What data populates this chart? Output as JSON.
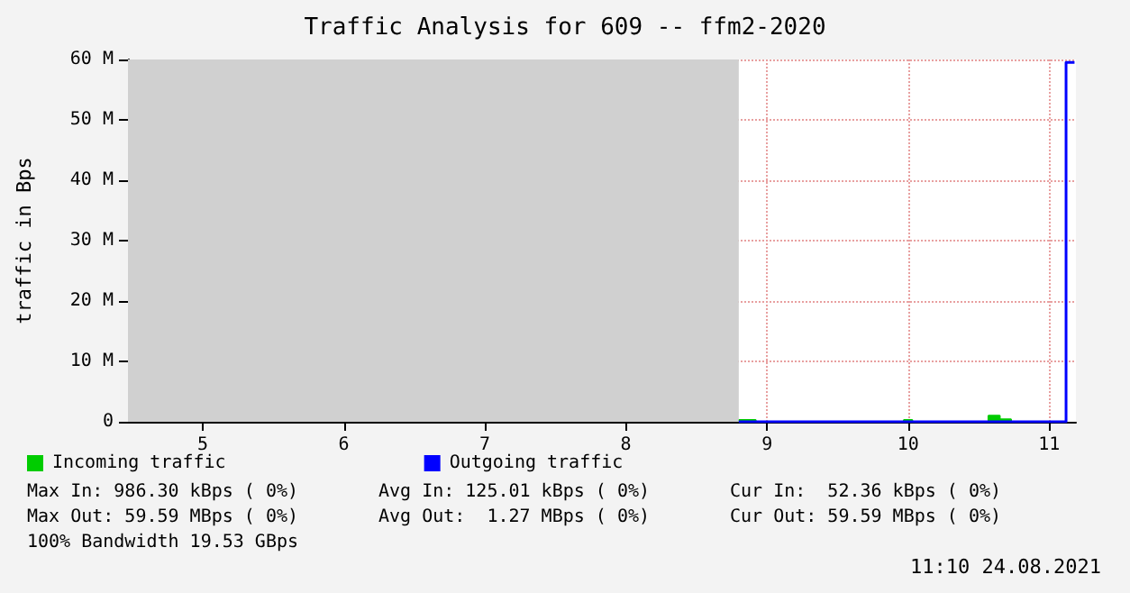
{
  "chart_data": {
    "type": "area",
    "title": "Traffic Analysis for 609 -- ffm2-2020",
    "ylabel": "traffic in Bps",
    "xlim": [
      4.47,
      11.19
    ],
    "xticks": [
      5,
      6,
      7,
      8,
      9,
      10,
      11
    ],
    "ylim": [
      0,
      60
    ],
    "yticks": [
      0,
      {
        "value": 10,
        "label": "10 M"
      },
      {
        "value": 20,
        "label": "20 M"
      },
      {
        "value": 30,
        "label": "30 M"
      },
      {
        "value": 40,
        "label": "40 M"
      },
      {
        "value": 50,
        "label": "50 M"
      },
      {
        "value": 60,
        "label": "60 M"
      }
    ],
    "series": [
      {
        "name": "Incoming traffic",
        "color": "#00cc00",
        "x": [
          8.8,
          8.92,
          9.97,
          10.03,
          10.57,
          10.65,
          10.73
        ],
        "values": [
          0.3,
          0,
          0.3,
          0,
          1,
          0.4,
          0
        ]
      },
      {
        "name": "Outgoing traffic",
        "type": "step",
        "color": "#0000ff",
        "x": [
          8.8,
          11.12,
          11.18
        ],
        "values": [
          0,
          59.5,
          59.5
        ]
      }
    ],
    "bands": [
      {
        "axis": "x",
        "from": 4.47,
        "to": 8.8,
        "color": "#d0d0d0"
      }
    ],
    "grid": true,
    "legend": "bottom left",
    "annotations": [
      "Max In: 986.30 kBps ( 0%)",
      "Avg In: 125.01 kBps ( 0%)",
      "Cur In:  52.36 kBps ( 0%)",
      "Max Out: 59.59 MBps ( 0%)",
      "Avg Out:  1.27 MBps ( 0%)",
      "Cur Out: 59.59 MBps ( 0%)",
      "100% Bandwidth 19.53 GBps",
      "11:10 24.08.2021"
    ]
  }
}
